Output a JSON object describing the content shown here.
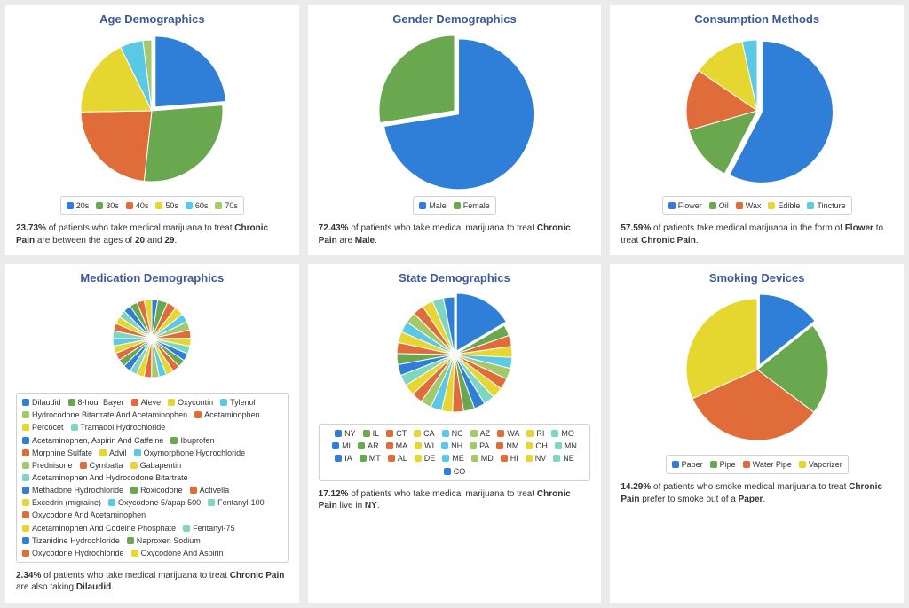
{
  "layout": {
    "page_bg": "#ebebeb",
    "card_bg": "#ffffff",
    "title_color": "#3b5998",
    "title_fontsize": 13,
    "caption_fontsize": 10,
    "caption_color": "#333333",
    "legend_border": "#d0d0d0",
    "legend_fontsize": 9
  },
  "cards": [
    {
      "id": "age",
      "title": "Age Demographics",
      "type": "pie",
      "radius": 80,
      "legend_style": "narrow",
      "highlight_index": 0,
      "slices": [
        {
          "label": "20s",
          "value": 23.73,
          "color": "#2f7ed8"
        },
        {
          "label": "30s",
          "value": 28.0,
          "color": "#6aa84f"
        },
        {
          "label": "40s",
          "value": 23.0,
          "color": "#e06c3a"
        },
        {
          "label": "50s",
          "value": 18.0,
          "color": "#e6d630"
        },
        {
          "label": "60s",
          "value": 5.27,
          "color": "#5bc8e6"
        },
        {
          "label": "70s",
          "value": 2.0,
          "color": "#a2c96a"
        }
      ],
      "caption_parts": [
        {
          "t": "23.73%",
          "b": true
        },
        {
          "t": " of patients who take medical marijuana to treat "
        },
        {
          "t": "Chronic Pain",
          "b": true
        },
        {
          "t": " are between the ages of "
        },
        {
          "t": "20",
          "b": true
        },
        {
          "t": " and "
        },
        {
          "t": "29",
          "b": true
        },
        {
          "t": "."
        }
      ]
    },
    {
      "id": "gender",
      "title": "Gender Demographics",
      "type": "pie",
      "radius": 85,
      "legend_style": "narrow",
      "highlight_index": 0,
      "slices": [
        {
          "label": "Male",
          "value": 72.43,
          "color": "#2f7ed8"
        },
        {
          "label": "Female",
          "value": 27.57,
          "color": "#6aa84f"
        }
      ],
      "caption_parts": [
        {
          "t": "72.43%",
          "b": true
        },
        {
          "t": " of patients who take medical marijuana to treat "
        },
        {
          "t": "Chronic Pain",
          "b": true
        },
        {
          "t": " are "
        },
        {
          "t": "Male",
          "b": true
        },
        {
          "t": "."
        }
      ]
    },
    {
      "id": "consumption",
      "title": "Consumption Methods",
      "type": "pie",
      "radius": 80,
      "legend_style": "narrow",
      "highlight_index": 0,
      "slices": [
        {
          "label": "Flower",
          "value": 57.59,
          "color": "#2f7ed8"
        },
        {
          "label": "Oil",
          "value": 13.0,
          "color": "#6aa84f"
        },
        {
          "label": "Wax",
          "value": 14.0,
          "color": "#e06c3a"
        },
        {
          "label": "Edible",
          "value": 12.0,
          "color": "#e6d630"
        },
        {
          "label": "Tincture",
          "value": 3.41,
          "color": "#5bc8e6"
        }
      ],
      "caption_parts": [
        {
          "t": "57.59%",
          "b": true
        },
        {
          "t": " of patients take medical marijuana in the form of "
        },
        {
          "t": "Flower",
          "b": true
        },
        {
          "t": " to treat "
        },
        {
          "t": "Chronic Pain",
          "b": true
        },
        {
          "t": "."
        }
      ]
    },
    {
      "id": "medication",
      "title": "Medication Demographics",
      "type": "pie",
      "radius": 44,
      "legend_style": "wide",
      "highlight_index": -1,
      "slices": [
        {
          "label": "Dilaudid",
          "value": 2.34,
          "color": "#2f7ed8"
        },
        {
          "label": "8-hour Bayer",
          "value": 4.0,
          "color": "#6aa84f"
        },
        {
          "label": "Aleve",
          "value": 3.8,
          "color": "#e06c3a"
        },
        {
          "label": "Oxycontin",
          "value": 3.6,
          "color": "#e6d630"
        },
        {
          "label": "Tylenol",
          "value": 3.5,
          "color": "#5bc8e6"
        },
        {
          "label": "Hydrocodone Bitartrate And Acetaminophen",
          "value": 3.4,
          "color": "#a2c96a"
        },
        {
          "label": "Acetaminophen",
          "value": 3.3,
          "color": "#e06c3a"
        },
        {
          "label": "Percocet",
          "value": 3.2,
          "color": "#e6d630"
        },
        {
          "label": "Tramadol Hydrochloride",
          "value": 3.1,
          "color": "#7ed6c1"
        },
        {
          "label": "Acetaminophen, Aspirin And Caffeine",
          "value": 3.0,
          "color": "#2f7ed8"
        },
        {
          "label": "Ibuprofen",
          "value": 3.0,
          "color": "#6aa84f"
        },
        {
          "label": "Morphine Sulfate",
          "value": 3.0,
          "color": "#e06c3a"
        },
        {
          "label": "Advil",
          "value": 3.0,
          "color": "#e6d630"
        },
        {
          "label": "Oxymorphone Hydrochloride",
          "value": 3.0,
          "color": "#5bc8e6"
        },
        {
          "label": "Prednisone",
          "value": 3.0,
          "color": "#a2c96a"
        },
        {
          "label": "Cymbalta",
          "value": 3.0,
          "color": "#e06c3a"
        },
        {
          "label": "Gabapentin",
          "value": 3.0,
          "color": "#e6d630"
        },
        {
          "label": "Acetaminophen And Hydrocodone Bitartrate",
          "value": 3.0,
          "color": "#7ed6c1"
        },
        {
          "label": "Methadone Hydrochloride",
          "value": 3.0,
          "color": "#2f7ed8"
        },
        {
          "label": "Roxicodone",
          "value": 3.0,
          "color": "#6aa84f"
        },
        {
          "label": "Activella",
          "value": 3.0,
          "color": "#e06c3a"
        },
        {
          "label": "Excedrin (migraine)",
          "value": 3.0,
          "color": "#e6d630"
        },
        {
          "label": "Oxycodone 5/apap 500",
          "value": 3.0,
          "color": "#5bc8e6"
        },
        {
          "label": "Fentanyl-100",
          "value": 3.0,
          "color": "#7ed6c1"
        },
        {
          "label": "Oxycodone And Acetaminophen",
          "value": 3.0,
          "color": "#e06c3a"
        },
        {
          "label": "Acetaminophen And Codeine Phosphate",
          "value": 3.0,
          "color": "#e6d630"
        },
        {
          "label": "Fentanyl-75",
          "value": 3.0,
          "color": "#7ed6c1"
        },
        {
          "label": "Tizanidine Hydrochloride",
          "value": 3.0,
          "color": "#2f7ed8"
        },
        {
          "label": "Naproxen Sodium",
          "value": 3.0,
          "color": "#6aa84f"
        },
        {
          "label": "Oxycodone Hydrochloride",
          "value": 3.0,
          "color": "#e06c3a"
        },
        {
          "label": "Oxycodone And Aspirin",
          "value": 3.0,
          "color": "#e6d630"
        }
      ],
      "caption_parts": [
        {
          "t": "2.34%",
          "b": true
        },
        {
          "t": " of patients who take medical marijuana to treat "
        },
        {
          "t": "Chronic Pain",
          "b": true
        },
        {
          "t": " are also taking "
        },
        {
          "t": "Dilaudid",
          "b": true
        },
        {
          "t": "."
        }
      ]
    },
    {
      "id": "state",
      "title": "State Demographics",
      "type": "pie",
      "radius": 65,
      "legend_style": "wide-center",
      "highlight_index": 0,
      "slices": [
        {
          "label": "NY",
          "value": 17.12,
          "color": "#2f7ed8"
        },
        {
          "label": "IL",
          "value": 3.2,
          "color": "#6aa84f"
        },
        {
          "label": "CT",
          "value": 3.2,
          "color": "#e06c3a"
        },
        {
          "label": "CA",
          "value": 3.2,
          "color": "#e6d630"
        },
        {
          "label": "NC",
          "value": 3.2,
          "color": "#5bc8e6"
        },
        {
          "label": "AZ",
          "value": 3.2,
          "color": "#a2c96a"
        },
        {
          "label": "WA",
          "value": 3.2,
          "color": "#e06c3a"
        },
        {
          "label": "RI",
          "value": 3.2,
          "color": "#e6d630"
        },
        {
          "label": "MO",
          "value": 3.2,
          "color": "#7ed6c1"
        },
        {
          "label": "MI",
          "value": 3.2,
          "color": "#2f7ed8"
        },
        {
          "label": "AR",
          "value": 3.2,
          "color": "#6aa84f"
        },
        {
          "label": "MA",
          "value": 3.2,
          "color": "#e06c3a"
        },
        {
          "label": "WI",
          "value": 3.2,
          "color": "#e6d630"
        },
        {
          "label": "NH",
          "value": 3.2,
          "color": "#5bc8e6"
        },
        {
          "label": "PA",
          "value": 3.2,
          "color": "#a2c96a"
        },
        {
          "label": "NM",
          "value": 3.2,
          "color": "#e06c3a"
        },
        {
          "label": "OH",
          "value": 3.2,
          "color": "#e6d630"
        },
        {
          "label": "MN",
          "value": 3.2,
          "color": "#7ed6c1"
        },
        {
          "label": "IA",
          "value": 3.2,
          "color": "#2f7ed8"
        },
        {
          "label": "MT",
          "value": 3.2,
          "color": "#6aa84f"
        },
        {
          "label": "AL",
          "value": 3.2,
          "color": "#e06c3a"
        },
        {
          "label": "DE",
          "value": 3.2,
          "color": "#e6d630"
        },
        {
          "label": "ME",
          "value": 3.2,
          "color": "#5bc8e6"
        },
        {
          "label": "MD",
          "value": 3.2,
          "color": "#a2c96a"
        },
        {
          "label": "HI",
          "value": 3.2,
          "color": "#e06c3a"
        },
        {
          "label": "NV",
          "value": 3.2,
          "color": "#e6d630"
        },
        {
          "label": "NE",
          "value": 3.2,
          "color": "#7ed6c1"
        },
        {
          "label": "CO",
          "value": 3.2,
          "color": "#2f7ed8"
        }
      ],
      "caption_parts": [
        {
          "t": "17.12%",
          "b": true
        },
        {
          "t": " of patients who take medical marijuana to treat "
        },
        {
          "t": "Chronic Pain",
          "b": true
        },
        {
          "t": " live in "
        },
        {
          "t": "NY",
          "b": true
        },
        {
          "t": "."
        }
      ]
    },
    {
      "id": "smoking",
      "title": "Smoking Devices",
      "type": "pie",
      "radius": 80,
      "legend_style": "narrow",
      "highlight_index": 0,
      "slices": [
        {
          "label": "Paper",
          "value": 14.29,
          "color": "#2f7ed8"
        },
        {
          "label": "Pipe",
          "value": 21.0,
          "color": "#6aa84f"
        },
        {
          "label": "Water Pipe",
          "value": 33.0,
          "color": "#e06c3a"
        },
        {
          "label": "Vaporizer",
          "value": 31.71,
          "color": "#e6d630"
        }
      ],
      "caption_parts": [
        {
          "t": "14.29%",
          "b": true
        },
        {
          "t": " of patients who smoke medical marijuana to treat "
        },
        {
          "t": "Chronic Pain",
          "b": true
        },
        {
          "t": " prefer to smoke out of a "
        },
        {
          "t": "Paper",
          "b": true
        },
        {
          "t": "."
        }
      ]
    }
  ]
}
